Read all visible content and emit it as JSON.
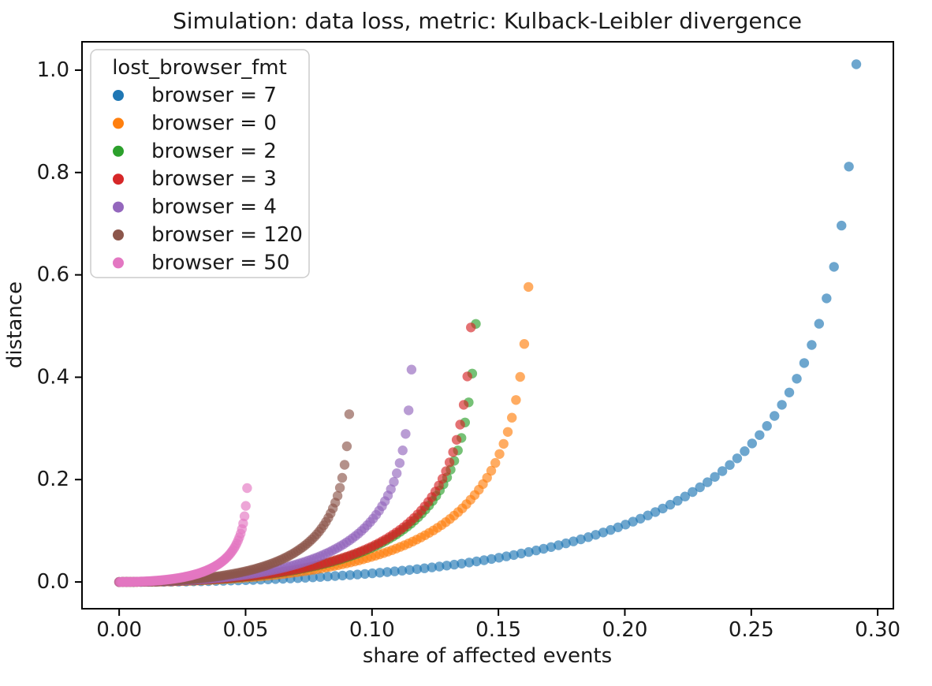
{
  "chart_data": {
    "type": "scatter",
    "title": "Simulation: data loss, metric: Kulback-Leibler divergence",
    "xlabel": "share of affected events",
    "ylabel": "distance",
    "xlim": [
      -0.0147,
      0.3062
    ],
    "ylim": [
      -0.0523,
      1.0554
    ],
    "xticks": [
      {
        "value": 0.0,
        "label": "0.00"
      },
      {
        "value": 0.05,
        "label": "0.05"
      },
      {
        "value": 0.1,
        "label": "0.10"
      },
      {
        "value": 0.15,
        "label": "0.15"
      },
      {
        "value": 0.2,
        "label": "0.20"
      },
      {
        "value": 0.25,
        "label": "0.25"
      },
      {
        "value": 0.3,
        "label": "0.30"
      }
    ],
    "yticks": [
      {
        "value": 0.0,
        "label": "0.0"
      },
      {
        "value": 0.2,
        "label": "0.2"
      },
      {
        "value": 0.4,
        "label": "0.4"
      },
      {
        "value": 0.6,
        "label": "0.6"
      },
      {
        "value": 0.8,
        "label": "0.8"
      },
      {
        "value": 1.0,
        "label": "1.0"
      }
    ],
    "grid": false,
    "marker": {
      "radius_px": 6.2,
      "alpha": 0.65
    },
    "legend": {
      "title": "lost_browser_fmt",
      "position": "upper left",
      "marker_radius_px": 7
    },
    "model": {
      "description": "Each series simulates losing a fraction p of events of one browser category with overall event share s. x = share of affected events = s*p ; y = Kulback-Leibler divergence = s*ln((1-s*p)/(1-p)) + (1-s)*ln(1-s*p). 100 points per series, p = 0.00 .. 0.99.",
      "n_points": 100,
      "p_step": 0.01
    },
    "series": [
      {
        "label": "browser = 7",
        "color": "#1f77b4",
        "share": 0.2945,
        "end_point": {
          "x": 0.2915,
          "y": 1.007
        }
      },
      {
        "label": "browser = 0",
        "color": "#ff7f0e",
        "share": 0.1635,
        "end_point": {
          "x": 0.1619,
          "y": 0.572
        }
      },
      {
        "label": "browser = 2",
        "color": "#2ca02c",
        "share": 0.1425,
        "end_point": {
          "x": 0.1411,
          "y": 0.503
        }
      },
      {
        "label": "browser = 3",
        "color": "#d62728",
        "share": 0.1405,
        "end_point": {
          "x": 0.1391,
          "y": 0.495
        }
      },
      {
        "label": "browser = 4",
        "color": "#9467bd",
        "share": 0.1168,
        "end_point": {
          "x": 0.1156,
          "y": 0.414
        }
      },
      {
        "label": "browser = 120",
        "color": "#8c564b",
        "share": 0.0919,
        "end_point": {
          "x": 0.091,
          "y": 0.328
        }
      },
      {
        "label": "browser = 50",
        "color": "#e377c2",
        "share": 0.0511,
        "end_point": {
          "x": 0.0506,
          "y": 0.183
        }
      }
    ]
  }
}
